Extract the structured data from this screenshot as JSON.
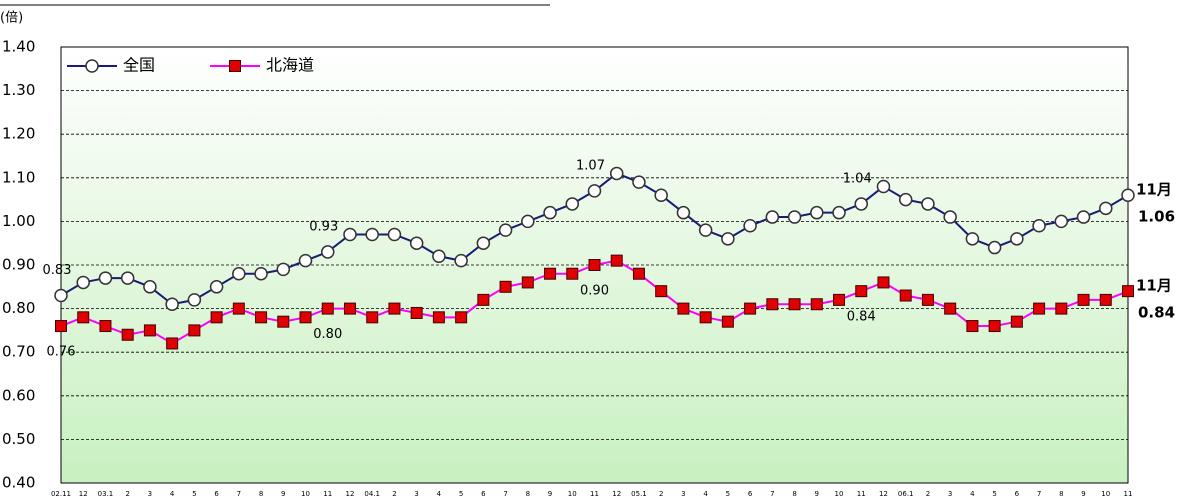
{
  "chart_data": {
    "type": "line",
    "y_unit": "(倍)",
    "categories": [
      "02.11",
      "12",
      "03.1",
      "2",
      "3",
      "4",
      "5",
      "6",
      "7",
      "8",
      "9",
      "10",
      "11",
      "12",
      "04.1",
      "2",
      "3",
      "4",
      "5",
      "6",
      "7",
      "8",
      "9",
      "10",
      "11",
      "12",
      "05.1",
      "2",
      "3",
      "4",
      "5",
      "6",
      "7",
      "8",
      "9",
      "10",
      "11",
      "12",
      "06.1",
      "2",
      "3",
      "4",
      "5",
      "6",
      "7",
      "8",
      "9",
      "10",
      "11"
    ],
    "series": [
      {
        "name": "全国",
        "color": "#1a1a78",
        "marker": "circle",
        "values": [
          0.83,
          0.86,
          0.87,
          0.87,
          0.85,
          0.81,
          0.82,
          0.85,
          0.88,
          0.88,
          0.89,
          0.91,
          0.93,
          0.97,
          0.97,
          0.97,
          0.95,
          0.92,
          0.91,
          0.95,
          0.98,
          1.0,
          1.02,
          1.04,
          1.07,
          1.11,
          1.09,
          1.06,
          1.02,
          0.98,
          0.96,
          0.99,
          1.01,
          1.01,
          1.02,
          1.02,
          1.04,
          1.08,
          1.05,
          1.04,
          1.01,
          0.96,
          0.94,
          0.96,
          0.99,
          1.0,
          1.01,
          1.03,
          1.06
        ],
        "value_labels": [
          "0.83",
          null,
          null,
          null,
          null,
          null,
          null,
          null,
          null,
          null,
          null,
          null,
          "0.93",
          null,
          null,
          null,
          null,
          null,
          null,
          null,
          null,
          null,
          null,
          null,
          "1.07",
          null,
          null,
          null,
          null,
          null,
          null,
          null,
          null,
          null,
          null,
          null,
          "1.04",
          null,
          null,
          null,
          null,
          null,
          null,
          null,
          null,
          null,
          null,
          null,
          "1.06"
        ],
        "end_annotation": "11月"
      },
      {
        "name": "北海道",
        "color": "#ff00ff",
        "marker_color": "#e00000",
        "marker": "square",
        "values": [
          0.76,
          0.78,
          0.76,
          0.74,
          0.75,
          0.72,
          0.75,
          0.78,
          0.8,
          0.78,
          0.77,
          0.78,
          0.8,
          0.8,
          0.78,
          0.8,
          0.79,
          0.78,
          0.78,
          0.82,
          0.85,
          0.86,
          0.88,
          0.88,
          0.9,
          0.91,
          0.88,
          0.84,
          0.8,
          0.78,
          0.77,
          0.8,
          0.81,
          0.81,
          0.81,
          0.82,
          0.84,
          0.86,
          0.83,
          0.82,
          0.8,
          0.76,
          0.76,
          0.77,
          0.8,
          0.8,
          0.82,
          0.82,
          0.84
        ],
        "value_labels": [
          "0.76",
          null,
          null,
          null,
          null,
          null,
          null,
          null,
          null,
          null,
          null,
          null,
          "0.80",
          null,
          null,
          null,
          null,
          null,
          null,
          null,
          null,
          null,
          null,
          null,
          "0.90",
          null,
          null,
          null,
          null,
          null,
          null,
          null,
          null,
          null,
          null,
          null,
          "0.84",
          null,
          null,
          null,
          null,
          null,
          null,
          null,
          null,
          null,
          null,
          null,
          "0.84"
        ],
        "end_annotation": "11月"
      }
    ],
    "ylim": [
      0.4,
      1.4
    ],
    "yticks": [
      {
        "value": 0.4,
        "label": "0.40"
      },
      {
        "value": 0.5,
        "label": "0.50"
      },
      {
        "value": 0.6,
        "label": "0.60"
      },
      {
        "value": 0.7,
        "label": "0.70"
      },
      {
        "value": 0.8,
        "label": "0.80"
      },
      {
        "value": 0.9,
        "label": "0.90"
      },
      {
        "value": 1.0,
        "label": "1.00"
      },
      {
        "value": 1.1,
        "label": "1.10"
      },
      {
        "value": 1.2,
        "label": "1.20"
      },
      {
        "value": 1.3,
        "label": "1.30"
      },
      {
        "value": 1.4,
        "label": "1.40"
      }
    ],
    "grid": true,
    "legend": "top-left"
  }
}
